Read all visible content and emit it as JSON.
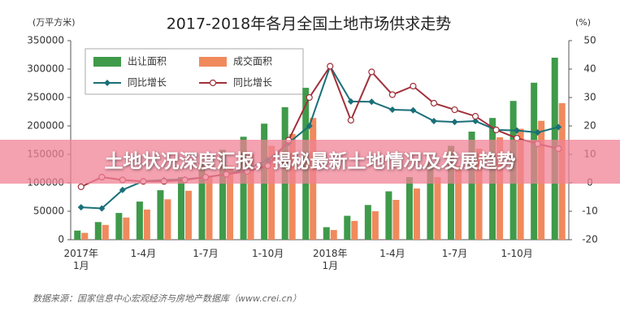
{
  "chart_data": {
    "type": "bar",
    "title": "2017-2018年各月全国土地市场供求走势",
    "y_unit": "(万平方米)",
    "y2_unit": "(%)",
    "categories": [
      "2017年\n1月",
      null,
      null,
      "1-4月",
      null,
      null,
      "1-7月",
      null,
      null,
      "1-10月",
      null,
      null,
      "2018年\n1月",
      null,
      null,
      "1-4月",
      null,
      null,
      "1-7月",
      null,
      null,
      "1-10月",
      null,
      null
    ],
    "series": [
      {
        "name": "出让面积",
        "type": "bar",
        "color": "#3f9a4a",
        "values": [
          16000,
          31000,
          47000,
          67000,
          87000,
          110000,
          136000,
          158000,
          181000,
          204000,
          233000,
          267000,
          22000,
          42000,
          61000,
          85000,
          110000,
          136000,
          165000,
          190000,
          214000,
          244000,
          276000,
          320000
        ]
      },
      {
        "name": "成交面积",
        "type": "bar",
        "color": "#f08a5d",
        "values": [
          12000,
          26000,
          39000,
          53000,
          71000,
          86000,
          110000,
          130000,
          150000,
          165000,
          186000,
          214000,
          17000,
          33000,
          50000,
          70000,
          90000,
          110000,
          130000,
          160000,
          180000,
          195000,
          209000,
          240000
        ]
      },
      {
        "name": "同比增长",
        "type": "line",
        "marker": "diamond",
        "axis": "y2",
        "color": "#1a6f78",
        "values": [
          -8.6,
          -9,
          -2.5,
          0.6,
          1,
          1.2,
          2,
          3,
          5,
          8,
          14,
          20,
          41,
          28.6,
          28.5,
          25.7,
          25.5,
          21.7,
          21.4,
          21.7,
          18.6,
          18.4,
          17.7,
          19.6
        ]
      },
      {
        "name": "同比增长",
        "type": "line",
        "marker": "circle",
        "axis": "y2",
        "color": "#a0303a",
        "values": [
          -1.4,
          2,
          1,
          0.5,
          0.5,
          1,
          2,
          3,
          4,
          6,
          15,
          30,
          41,
          22,
          39,
          31,
          34,
          28,
          25.7,
          23.4,
          18.6,
          15.7,
          13.7,
          12
        ]
      }
    ],
    "ylim": [
      0,
      350000
    ],
    "yticks": [
      0,
      50000,
      100000,
      150000,
      200000,
      250000,
      300000,
      350000
    ],
    "y2lim": [
      -20,
      50
    ],
    "y2ticks": [
      -20,
      -10,
      0,
      10,
      20,
      30,
      40,
      50
    ],
    "source": "数据来源：国家信息中心宏观经济与房地产数据库（www.crei.cn）",
    "banner": "土地状况深度汇报，揭秘最新土地情况及发展趋势"
  }
}
